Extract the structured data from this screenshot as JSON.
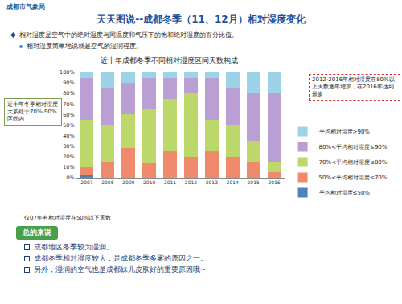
{
  "header": {
    "organization": "成都市气象局",
    "title": "天天图说--成都冬季（11、12月）相对湿度变化",
    "bullets": [
      "相对湿度是空气中的绝对湿度与同温度和气压下的饱和绝对湿度的百分比值。",
      "相对湿度简单地说就是空气的湿润程度。"
    ]
  },
  "chart_data": {
    "type": "bar",
    "stacked": true,
    "title": "近十年成都冬季不同相对湿度区间天数构成",
    "categories": [
      "2007",
      "2008",
      "2009",
      "2010",
      "2011",
      "2012",
      "2013",
      "2014",
      "2015",
      "2016"
    ],
    "series": [
      {
        "name": "平均相对湿度≤50%",
        "color": "#4f81bd",
        "values": [
          2,
          0,
          0,
          0,
          0,
          0,
          0,
          0,
          0,
          0
        ]
      },
      {
        "name": "50%<平均相对湿度≤70%",
        "color": "#f08a6c",
        "values": [
          8,
          15,
          28,
          14,
          25,
          20,
          25,
          20,
          15,
          5
        ]
      },
      {
        "name": "70%<平均相对湿度≤80%",
        "color": "#bcd76a",
        "values": [
          45,
          35,
          32,
          51,
          50,
          60,
          30,
          30,
          20,
          10
        ]
      },
      {
        "name": "80%<平均相对湿度≤90%",
        "color": "#b99fd4",
        "values": [
          40,
          35,
          30,
          30,
          20,
          15,
          40,
          35,
          45,
          65
        ]
      },
      {
        "name": "平均相对湿度>90%",
        "color": "#9dd3e6",
        "values": [
          5,
          15,
          10,
          5,
          5,
          5,
          5,
          15,
          20,
          20
        ]
      }
    ],
    "ylim": [
      0,
      100
    ],
    "yticks": [
      {
        "value": 0,
        "label": "0%"
      },
      {
        "value": 10,
        "label": "10%"
      },
      {
        "value": 20,
        "label": "20%"
      },
      {
        "value": 30,
        "label": "30%"
      },
      {
        "value": 40,
        "label": "40%"
      },
      {
        "value": 50,
        "label": "50%"
      },
      {
        "value": 60,
        "label": "60%"
      },
      {
        "value": 70,
        "label": "70%"
      },
      {
        "value": 80,
        "label": "80%"
      },
      {
        "value": 90,
        "label": "90%"
      },
      {
        "value": 100,
        "label": "100%"
      }
    ],
    "grid": false,
    "legend": "right",
    "annotations": [
      "近十年冬季相对湿度大多处于70%-90%区间内",
      "2012-2016年相对湿度在80%以上天数逐年增加，在2016年达到最多",
      "仅07年有相对湿度在50%以下天数"
    ]
  },
  "summary": {
    "heading": "总的来说",
    "bullets": [
      "成都地区冬季较为湿润。",
      "成都冬季相对湿度较大，是成都冬季多雾的原因之一。",
      "另外，湿润的空气也是成都妹儿皮肤好的重要原因哦~"
    ]
  }
}
